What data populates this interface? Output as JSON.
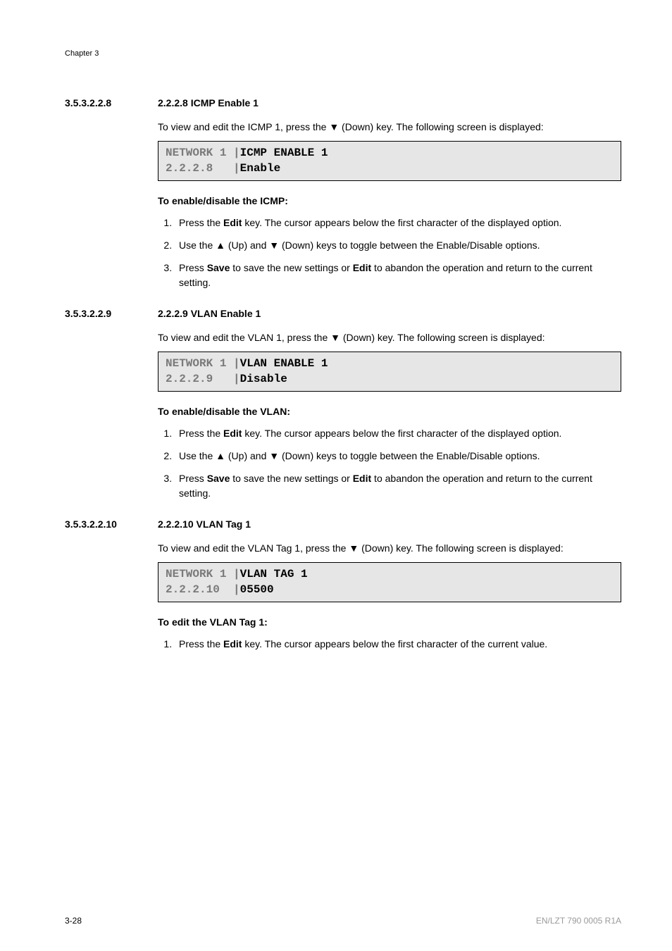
{
  "chapter_label": "Chapter 3",
  "sections": [
    {
      "num": "3.5.3.2.2.8",
      "title": "2.2.2.8 ICMP Enable 1",
      "intro_pre": "To view and edit the ICMP 1, press the ",
      "intro_key": "▼",
      "intro_post": " (Down) key. The following screen is displayed:",
      "code_line1_grey": "NETWORK 1 |",
      "code_line1_black": "ICMP ENABLE 1",
      "code_line2_grey": "2.2.2.8   |",
      "code_line2_black": "Enable",
      "subheading": "To enable/disable the ICMP:",
      "step1_a": "Press the ",
      "step1_b": "Edit",
      "step1_c": " key. The cursor appears below the first character of the displayed option.",
      "step2_a": "Use the ",
      "step2_up": "▲",
      "step2_b": " (Up) and ",
      "step2_dn": "▼",
      "step2_c": " (Down) keys to toggle between the Enable/Disable options.",
      "step3_a": "Press ",
      "step3_b": "Save",
      "step3_c": " to save the new settings or ",
      "step3_d": "Edit",
      "step3_e": " to abandon the operation and return to the current setting."
    },
    {
      "num": "3.5.3.2.2.9",
      "title": "2.2.2.9 VLAN Enable 1",
      "intro_pre": "To view and edit the VLAN 1, press the ",
      "intro_key": "▼",
      "intro_post": " (Down) key. The following screen is displayed:",
      "code_line1_grey": "NETWORK 1 |",
      "code_line1_black": "VLAN ENABLE 1",
      "code_line2_grey": "2.2.2.9   |",
      "code_line2_black": "Disable",
      "subheading": "To enable/disable the VLAN:",
      "step1_a": "Press the ",
      "step1_b": "Edit",
      "step1_c": " key. The cursor appears below the first character of the displayed option.",
      "step2_a": "Use the ",
      "step2_up": "▲",
      "step2_b": " (Up) and ",
      "step2_dn": "▼",
      "step2_c": " (Down) keys to toggle between the Enable/Disable options.",
      "step3_a": "Press ",
      "step3_b": "Save",
      "step3_c": " to save the new settings or ",
      "step3_d": "Edit",
      "step3_e": " to abandon the operation and return to the current setting."
    },
    {
      "num": "3.5.3.2.2.10",
      "title": "2.2.2.10 VLAN Tag 1",
      "intro_pre": "To view and edit the VLAN Tag 1, press the ",
      "intro_key": "▼",
      "intro_post": " (Down) key. The following screen is displayed:",
      "code_line1_grey": "NETWORK 1 |",
      "code_line1_black": "VLAN TAG 1",
      "code_line2_grey": "2.2.2.10  |",
      "code_line2_black": "05500",
      "subheading": "To edit the VLAN Tag 1:",
      "step1_a": "Press the ",
      "step1_b": "Edit",
      "step1_c": " key. The cursor appears below the first character of the current value."
    }
  ],
  "footer": {
    "page": "3-28",
    "docref": "EN/LZT 790 0005 R1A"
  }
}
